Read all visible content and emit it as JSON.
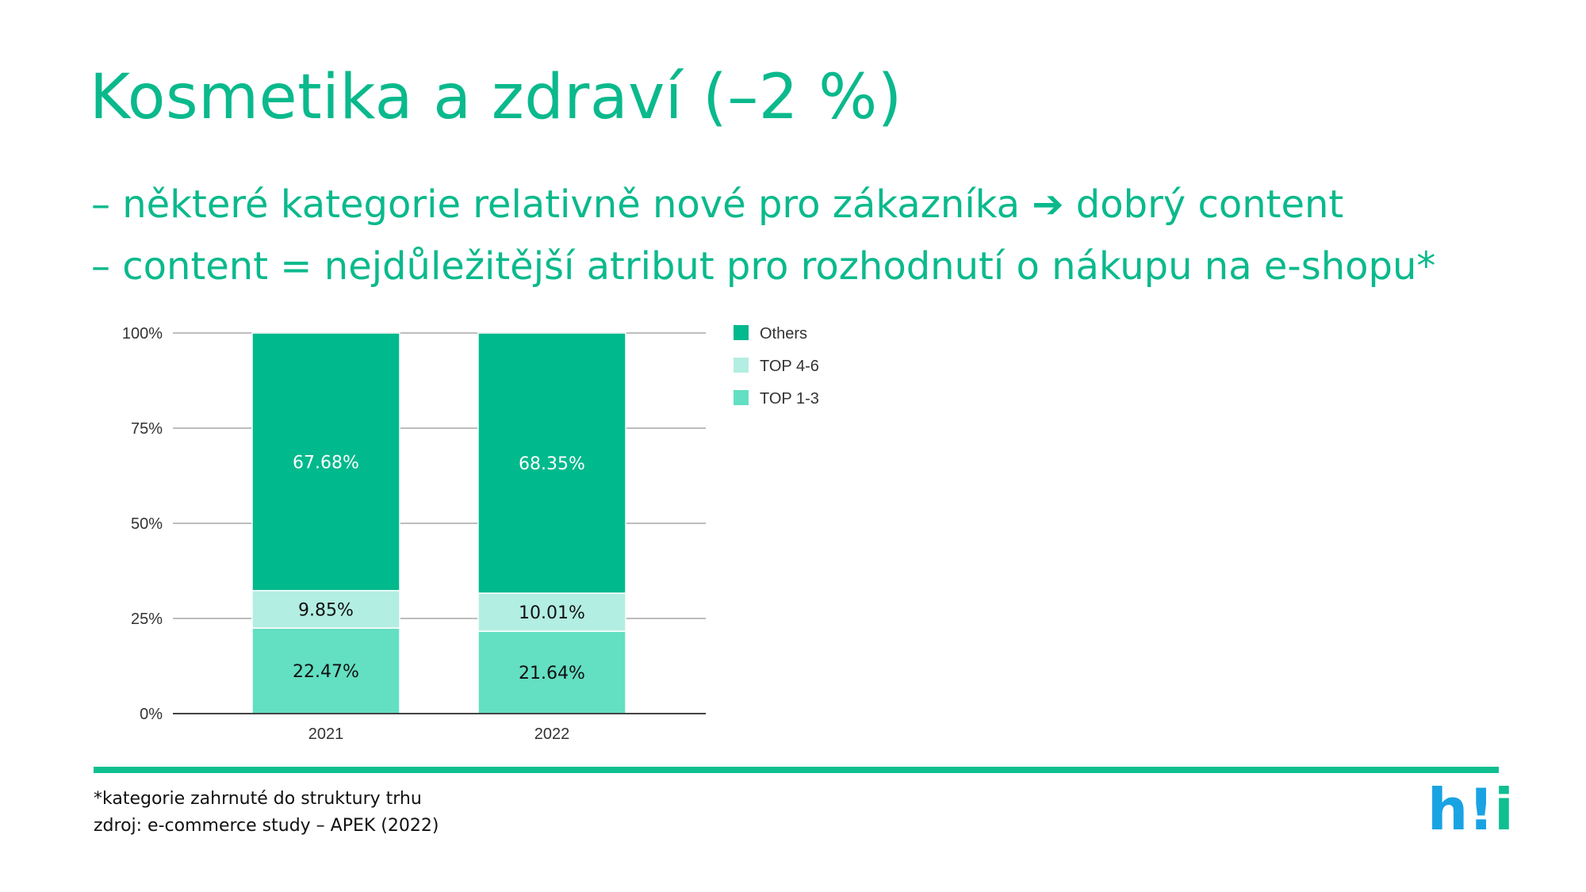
{
  "slide": {
    "title": "Kosmetika a zdraví (–2 %)",
    "bullets": [
      "– některé kategorie relativně nové pro zákazníka ➔ dobrý content",
      "– content = nejdůležitější atribut pro rozhodnutí o nákupu na e-shopu*"
    ],
    "footnotes": [
      "*kategorie zahrnuté do struktury trhu",
      "zdroj: e-commerce study – APEK (2022)"
    ],
    "logo": {
      "h": "h",
      "mark": "!",
      "i": "i"
    }
  },
  "colors": {
    "accent": "#0ab98c",
    "others": "#00b98c",
    "top46": "#b3eee2",
    "top13": "#63dfc2",
    "logo_blue": "#1aa3e3"
  },
  "chart_data": {
    "type": "bar",
    "stacked": true,
    "categories": [
      "2021",
      "2022"
    ],
    "series": [
      {
        "name": "TOP 1-3",
        "values": [
          22.47,
          21.64
        ],
        "labels": [
          "22.47%",
          "21.64%"
        ],
        "color": "#63dfc2",
        "label_color": "#111111"
      },
      {
        "name": "TOP 4-6",
        "values": [
          9.85,
          10.01
        ],
        "labels": [
          "9.85%",
          "10.01%"
        ],
        "color": "#b3eee2",
        "label_color": "#111111"
      },
      {
        "name": "Others",
        "values": [
          67.68,
          68.35
        ],
        "labels": [
          "67.68%",
          "68.35%"
        ],
        "color": "#00b98c",
        "label_color": "#ffffff"
      }
    ],
    "y_ticks": [
      "0%",
      "25%",
      "50%",
      "75%",
      "100%"
    ],
    "ylim": [
      0,
      100
    ],
    "legend_position": "right",
    "legend_order": [
      "Others",
      "TOP 4-6",
      "TOP 1-3"
    ],
    "grid": true
  }
}
